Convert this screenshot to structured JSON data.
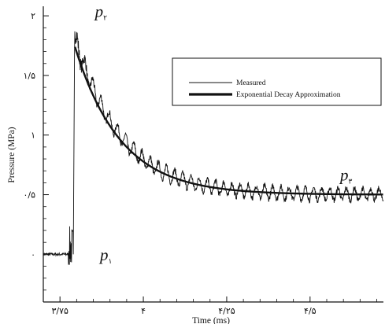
{
  "chart_data": {
    "type": "line",
    "xlabel": "Time (ms)",
    "ylabel": "Pressure (MPa)",
    "xlim": [
      3.7,
      4.72
    ],
    "ylim": [
      -0.4,
      2.08
    ],
    "x_ticks": [
      {
        "value": 3.75,
        "label": "۳/۷۵"
      },
      {
        "value": 4.0,
        "label": "۴"
      },
      {
        "value": 4.25,
        "label": "۴/۲۵"
      },
      {
        "value": 4.5,
        "label": "۴/۵"
      }
    ],
    "y_ticks": [
      {
        "value": 0,
        "label": "۰"
      },
      {
        "value": 0.5,
        "label": "۰/۵"
      },
      {
        "value": 1,
        "label": "۱"
      },
      {
        "value": 1.5,
        "label": "۱/۵"
      },
      {
        "value": 2,
        "label": "۲"
      }
    ],
    "legend": {
      "placement": "top-right",
      "entries": [
        {
          "label": "Measured",
          "style": "thin"
        },
        {
          "label": "Exponential Decay Approximation",
          "style": "thick"
        }
      ]
    },
    "annotations": [
      {
        "id": "p1",
        "base": "p",
        "sub": "۱",
        "x": 3.87,
        "y": -0.05
      },
      {
        "id": "p2",
        "base": "p",
        "sub": "۲",
        "x": 3.855,
        "y": 1.99
      },
      {
        "id": "p3",
        "base": "p",
        "sub": "۳",
        "x": 4.59,
        "y": 0.62
      }
    ],
    "series": [
      {
        "name": "Measured",
        "style": "thin",
        "baseline": 0,
        "rise_time": 3.79,
        "peak": 1.87,
        "decay_end_value": 0.5,
        "decay_time_constant": 0.135,
        "oscillation_amplitude": 0.05,
        "oscillation_period": 0.0245,
        "x": [
          3.7,
          3.75,
          3.77,
          3.78,
          3.79,
          3.795,
          3.8,
          3.82,
          3.85,
          3.9,
          3.95,
          4.0,
          4.1,
          4.2,
          4.3,
          4.4,
          4.5,
          4.6,
          4.72
        ],
        "y": [
          0,
          0,
          0,
          0.05,
          1.25,
          1.87,
          1.75,
          1.62,
          1.45,
          1.23,
          1.05,
          0.93,
          0.76,
          0.65,
          0.58,
          0.55,
          0.52,
          0.51,
          0.5
        ]
      },
      {
        "name": "Exponential Decay Approximation",
        "style": "thick",
        "start_time": 3.795,
        "peak": 1.74,
        "end_value": 0.5,
        "time_constant": 0.137,
        "x": [
          3.795,
          3.85,
          3.9,
          3.95,
          4.0,
          4.1,
          4.2,
          4.3,
          4.4,
          4.5,
          4.6,
          4.72
        ],
        "y": [
          1.74,
          1.47,
          1.27,
          1.11,
          0.97,
          0.79,
          0.67,
          0.6,
          0.55,
          0.53,
          0.52,
          0.51
        ]
      }
    ]
  }
}
